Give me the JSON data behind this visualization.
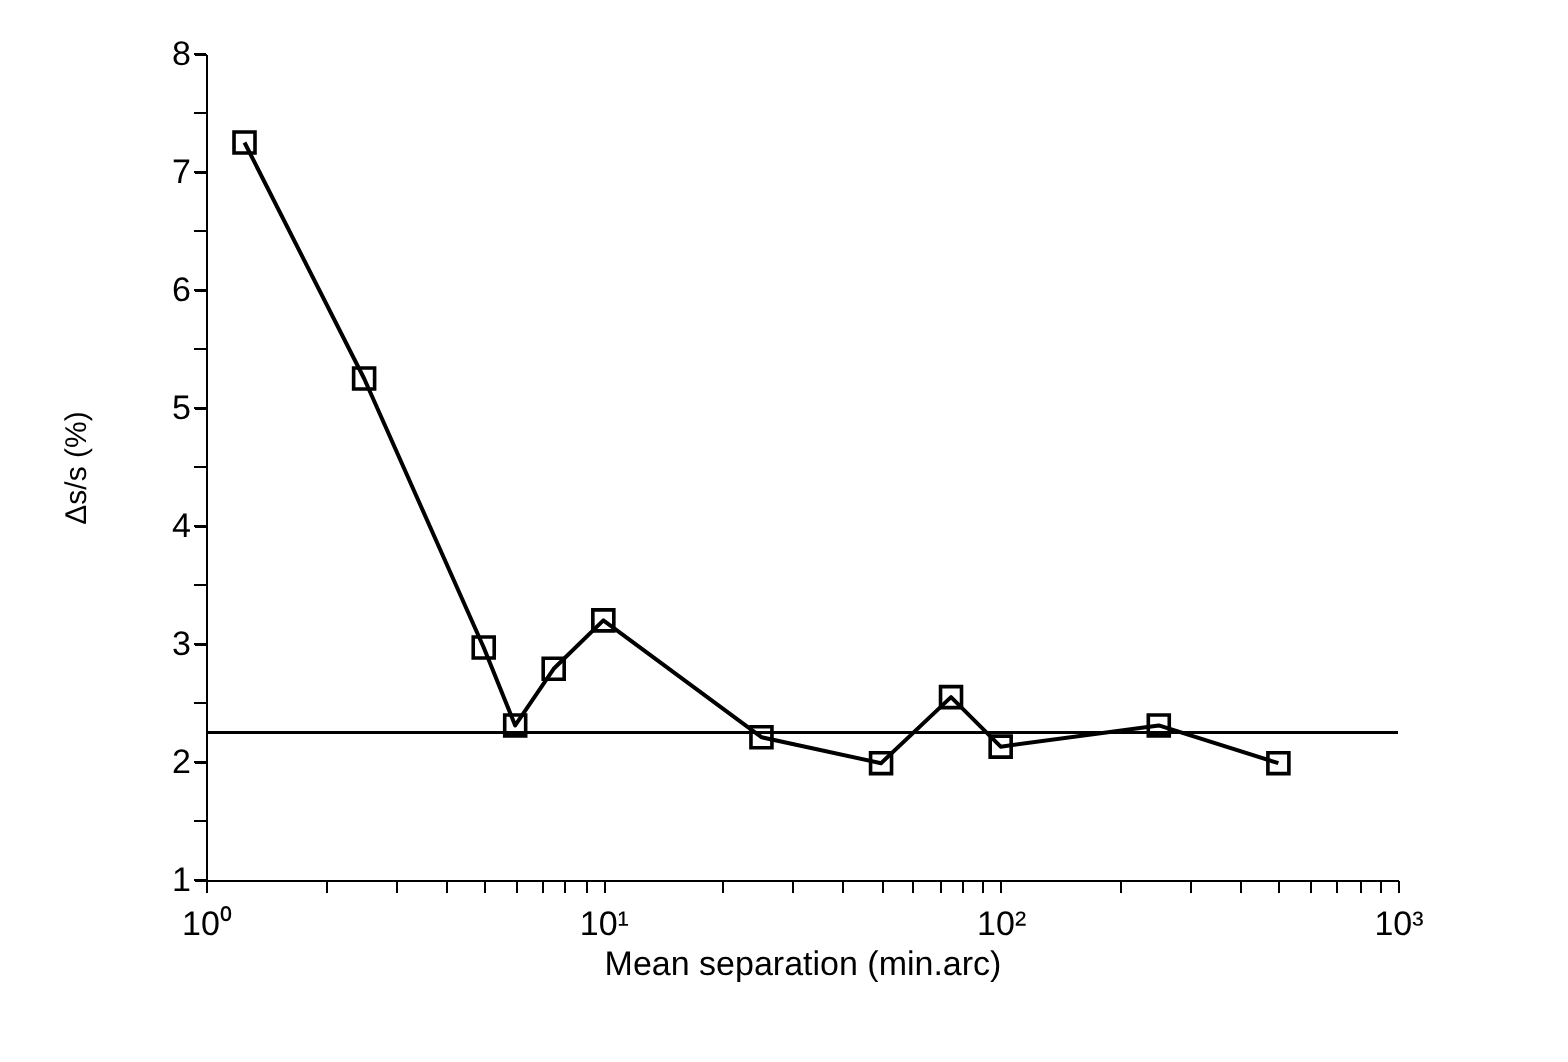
{
  "chart_data": {
    "type": "line",
    "xlabel": "Mean separation (min.arc)",
    "ylabel": "Δs/s (%)",
    "x": [
      1.25,
      2.5,
      5,
      6,
      7.5,
      10,
      25,
      50,
      75,
      100,
      250,
      500
    ],
    "series": [
      {
        "color": "#000000",
        "values": [
          7.25,
          5.25,
          2.97,
          2.31,
          2.79,
          3.2,
          2.21,
          1.99,
          2.55,
          2.13,
          2.31,
          1.99
        ]
      }
    ],
    "log": "x",
    "marker": "square",
    "line_style": "solid",
    "grid": false,
    "xlim": [
      1,
      1000
    ],
    "ylim": [
      1,
      8
    ],
    "xticks": [
      {
        "value": 1,
        "label": "10⁰"
      },
      {
        "value": 2,
        "label": null
      },
      {
        "value": 3,
        "label": null
      },
      {
        "value": 4,
        "label": null
      },
      {
        "value": 5,
        "label": null
      },
      {
        "value": 6,
        "label": null
      },
      {
        "value": 7,
        "label": null
      },
      {
        "value": 8,
        "label": null
      },
      {
        "value": 9,
        "label": null
      },
      {
        "value": 10,
        "label": "10¹"
      },
      {
        "value": 20,
        "label": null
      },
      {
        "value": 30,
        "label": null
      },
      {
        "value": 40,
        "label": null
      },
      {
        "value": 50,
        "label": null
      },
      {
        "value": 60,
        "label": null
      },
      {
        "value": 70,
        "label": null
      },
      {
        "value": 80,
        "label": null
      },
      {
        "value": 90,
        "label": null
      },
      {
        "value": 100,
        "label": "10²"
      },
      {
        "value": 200,
        "label": null
      },
      {
        "value": 300,
        "label": null
      },
      {
        "value": 400,
        "label": null
      },
      {
        "value": 500,
        "label": null
      },
      {
        "value": 600,
        "label": null
      },
      {
        "value": 700,
        "label": null
      },
      {
        "value": 800,
        "label": null
      },
      {
        "value": 900,
        "label": null
      },
      {
        "value": 1000,
        "label": "10³"
      }
    ],
    "yticks": [
      1,
      {
        "value": 1.5,
        "label": null
      },
      2,
      {
        "value": 2.5,
        "label": null
      },
      3,
      {
        "value": 3.5,
        "label": null
      },
      4,
      {
        "value": 4.5,
        "label": null
      },
      5,
      {
        "value": 5.5,
        "label": null
      },
      6,
      {
        "value": 6.5,
        "label": null
      },
      7,
      {
        "value": 7.5,
        "label": null
      },
      8
    ],
    "ref_lines": [
      {
        "axis": "y",
        "value": 2.25,
        "color": "#000000",
        "line_style": "solid"
      }
    ]
  }
}
